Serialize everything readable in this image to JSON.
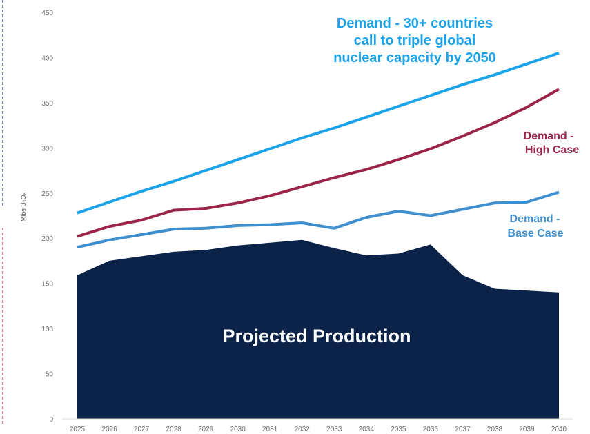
{
  "chart_data": {
    "type": "area",
    "ylabel": "Mlbs U₃O₈",
    "ylim": [
      0,
      450
    ],
    "yticks": [
      0,
      50,
      100,
      150,
      200,
      250,
      300,
      350,
      400,
      450
    ],
    "grid": false,
    "categories": [
      "2025",
      "2026",
      "2027",
      "2028",
      "2029",
      "2030",
      "2031",
      "2032",
      "2033",
      "2034",
      "2035",
      "2036",
      "2037",
      "2038",
      "2039",
      "2040"
    ],
    "series": [
      {
        "key": "projected_production",
        "kind": "area",
        "color": "#0b2348",
        "values": [
          159,
          175,
          180,
          185,
          187,
          192,
          195,
          198,
          189,
          181,
          183,
          193,
          159,
          144,
          142,
          140
        ]
      },
      {
        "key": "base_case",
        "kind": "line",
        "color": "#3d8fcf",
        "values": [
          190,
          198,
          204,
          210,
          211,
          214,
          215,
          217,
          211,
          223,
          230,
          225,
          232,
          239,
          240,
          251
        ]
      },
      {
        "key": "high_case",
        "kind": "line",
        "color": "#9b2448",
        "values": [
          202,
          213,
          220,
          231,
          233,
          239,
          247,
          257,
          267,
          276,
          287,
          299,
          313,
          328,
          345,
          365
        ]
      },
      {
        "key": "triple",
        "kind": "line",
        "color": "#1aa3e8",
        "values": [
          228,
          240,
          252,
          263,
          275,
          287,
          299,
          311,
          322,
          334,
          346,
          358,
          370,
          381,
          393,
          405
        ]
      }
    ],
    "annotations": {
      "triple": [
        "Demand - 30+ countries",
        "call to triple global",
        "nuclear capacity by 2050"
      ],
      "high_case": [
        "Demand -",
        "High Case"
      ],
      "base_case": [
        "Demand -",
        "Base Case"
      ],
      "production": "Projected Production"
    }
  }
}
